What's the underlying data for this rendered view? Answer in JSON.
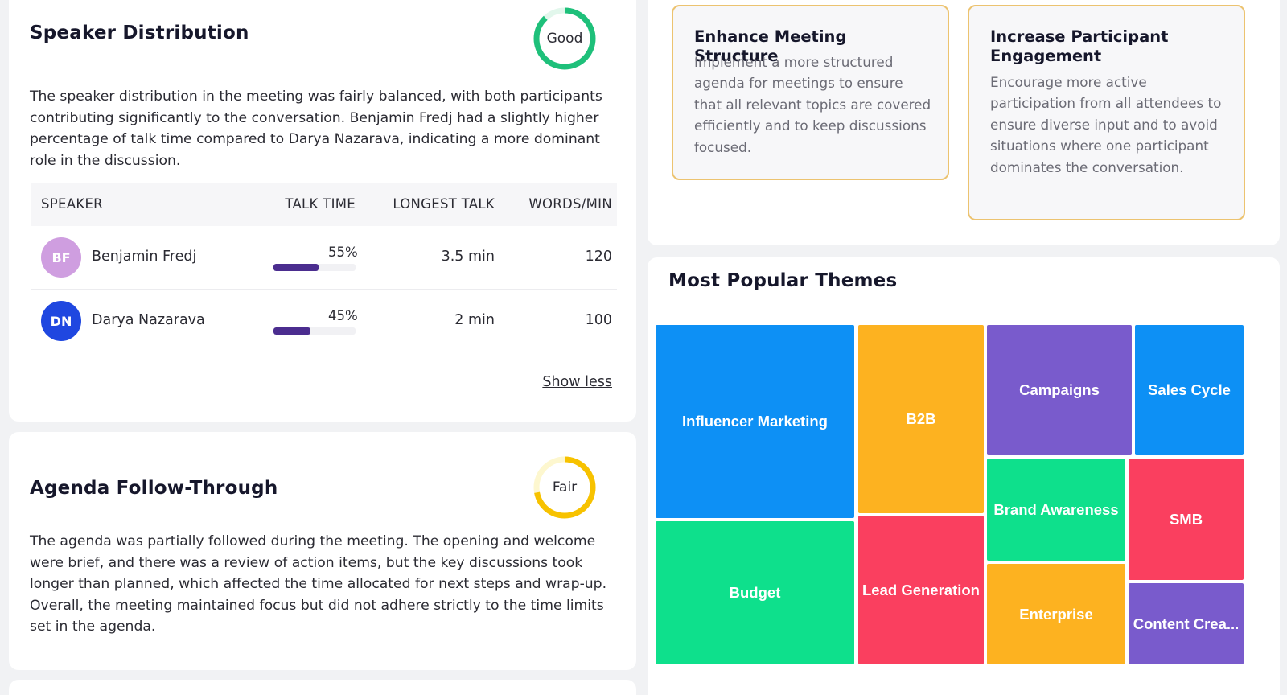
{
  "speaker_distribution": {
    "title": "Speaker Distribution",
    "rating": "Good",
    "rating_fraction": 0.88,
    "rating_color": "#1ec07a",
    "description": "The speaker distribution in the meeting was fairly balanced, with both participants contributing significantly to the conversation. Benjamin Fredj had a slightly higher percentage of talk time compared to Darya Nazarava, indicating a more dominant role in the discussion.",
    "columns": {
      "speaker": "SPEAKER",
      "talk_time": "TALK TIME",
      "longest_talk": "LONGEST TALK",
      "words_per_min": "WORDS/MIN"
    },
    "rows": [
      {
        "initials": "BF",
        "name": "Benjamin Fredj",
        "talk_pct_label": "55%",
        "talk_pct": 55,
        "longest": "3.5 min",
        "wpm": "120",
        "avatar_color": "#cf9ee0"
      },
      {
        "initials": "DN",
        "name": "Darya Nazarava",
        "talk_pct_label": "45%",
        "talk_pct": 45,
        "longest": "2 min",
        "wpm": "100",
        "avatar_color": "#1f47e0"
      }
    ],
    "show_less": "Show less"
  },
  "agenda": {
    "title": "Agenda Follow-Through",
    "rating": "Fair",
    "rating_fraction": 0.72,
    "rating_color": "#f7c200",
    "description": "The agenda was partially followed during the meeting. The opening and welcome were brief, and there was a review of action items, but the key discussions took longer than planned, which affected the time allocated for next steps and wrap-up. Overall, the meeting maintained focus but did not adhere strictly to the time limits set in the agenda."
  },
  "recommendations": [
    {
      "title": "Enhance Meeting Structure",
      "body": "Implement a more structured agenda for meetings to ensure that all relevant topics are covered efficiently and to keep discussions focused."
    },
    {
      "title": "Increase Participant Engagement",
      "body": "Encourage more active participation from all attendees to ensure diverse input and to avoid situations where one participant dominates the conversation."
    }
  ],
  "themes": {
    "title": "Most Popular Themes",
    "chart_data": {
      "type": "treemap",
      "items": [
        {
          "name": "Influencer Marketing",
          "color": "#0d90f5"
        },
        {
          "name": "Budget",
          "color": "#0ee08c"
        },
        {
          "name": "B2B",
          "color": "#fdb220"
        },
        {
          "name": "Lead Generation",
          "color": "#fa3f5f"
        },
        {
          "name": "Campaigns",
          "color": "#795bcc"
        },
        {
          "name": "Sales Cycle",
          "color": "#0d90f5"
        },
        {
          "name": "Brand Awareness",
          "color": "#0ee08c"
        },
        {
          "name": "SMB",
          "color": "#fa3f5f"
        },
        {
          "name": "Enterprise",
          "color": "#fdb220"
        },
        {
          "name": "Content Crea...",
          "color": "#795bcc"
        }
      ]
    }
  }
}
